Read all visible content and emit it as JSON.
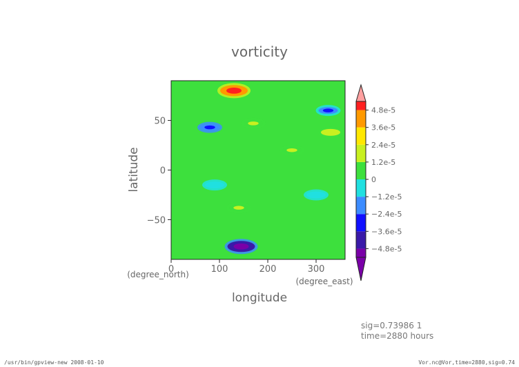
{
  "chart_data": {
    "type": "heatmap",
    "title": "vorticity",
    "xlabel": "longitude",
    "ylabel": "latitude",
    "x_unit": "(degree_east)",
    "y_unit": "(degree_north)",
    "xlim": [
      0,
      360
    ],
    "ylim": [
      -90,
      90
    ],
    "x_ticks": [
      "0",
      "100",
      "200",
      "300"
    ],
    "x_tick_values": [
      0,
      100,
      200,
      300
    ],
    "y_ticks": [
      "50",
      "0",
      "−50"
    ],
    "y_tick_values": [
      50,
      0,
      -50
    ],
    "colorbar": {
      "labels": [
        "4.8e-5",
        "3.6e-5",
        "2.4e-5",
        "1.2e-5",
        "0",
        "−1.2e-5",
        "−2.4e-5",
        "−3.6e-5",
        "−4.8e-5"
      ],
      "values": [
        4.8e-05,
        3.6e-05,
        2.4e-05,
        1.2e-05,
        0,
        -1.2e-05,
        -2.4e-05,
        -3.6e-05,
        -4.8e-05
      ],
      "range": [
        -5.4e-05,
        5.4e-05
      ],
      "extend": "both"
    },
    "features": [
      {
        "lon": 130,
        "lat": 80,
        "value": 5.2e-05
      },
      {
        "lon": 145,
        "lat": -77,
        "value": -5e-05
      },
      {
        "lon": 80,
        "lat": 43,
        "value": -3e-05
      },
      {
        "lon": 325,
        "lat": 60,
        "value": -2.6e-05
      },
      {
        "lon": 330,
        "lat": 38,
        "value": 1.8e-05
      },
      {
        "lon": 170,
        "lat": 47,
        "value": 1.5e-05
      },
      {
        "lon": 140,
        "lat": -38,
        "value": 1.3e-05
      },
      {
        "lon": 250,
        "lat": 20,
        "value": 1.2e-05
      },
      {
        "lon": 90,
        "lat": -15,
        "value": -1e-05
      },
      {
        "lon": 300,
        "lat": -25,
        "value": -1.2e-05
      }
    ]
  },
  "meta": {
    "sig_line": "sig=0.73986 1",
    "time_line": "time=2880 hours"
  },
  "footer": {
    "left": "/usr/bin/gpview-new  2008-01-10",
    "right": "Vor.nc@Vor,time=2880,sig=0.74"
  }
}
